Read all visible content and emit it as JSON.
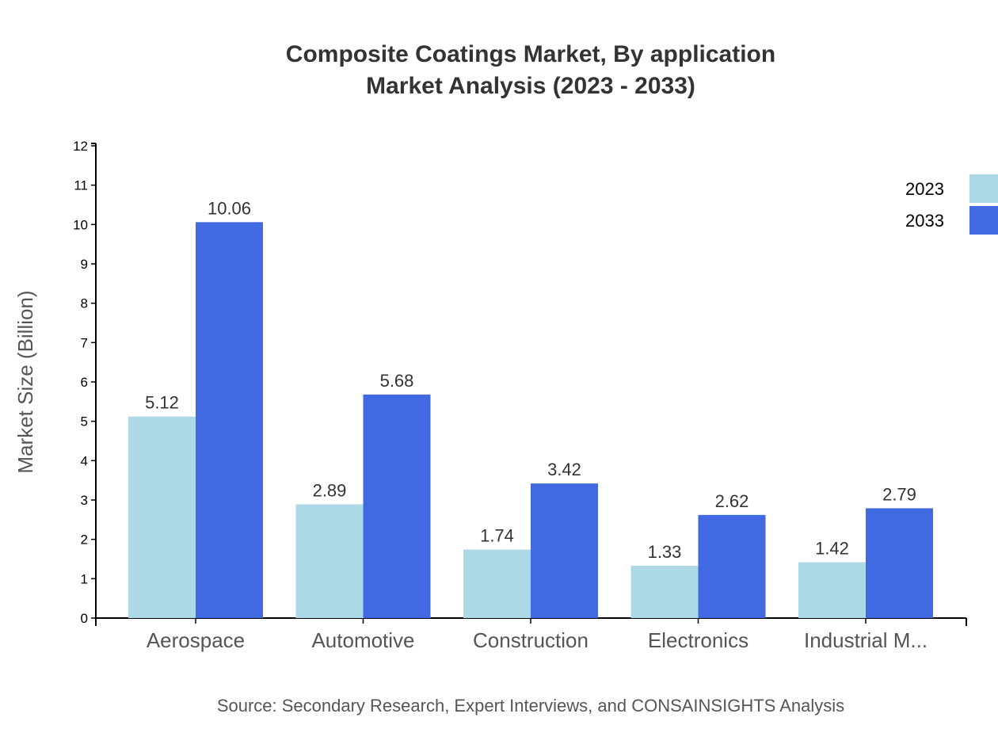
{
  "chart_data": {
    "type": "bar",
    "title": "Composite Coatings Market, By application",
    "subtitle": "Market Analysis (2023 - 2033)",
    "xlabel": "",
    "ylabel": "Market Size (Billion)",
    "ylim": [
      0,
      12
    ],
    "yticks": [
      0,
      1,
      2,
      3,
      4,
      5,
      6,
      7,
      8,
      9,
      10,
      11,
      12
    ],
    "categories": [
      "Aerospace",
      "Automotive",
      "Construction",
      "Electronics",
      "Industrial M..."
    ],
    "series": [
      {
        "name": "2023",
        "color": "#add8e6",
        "values": [
          5.12,
          2.89,
          1.74,
          1.33,
          1.42
        ]
      },
      {
        "name": "2033",
        "color": "#4169e1",
        "values": [
          10.06,
          5.68,
          3.42,
          2.62,
          2.79
        ]
      }
    ],
    "grid": false,
    "legend": "top-right",
    "source": "Source: Secondary Research, Expert Interviews, and CONSAINSIGHTS Analysis"
  }
}
